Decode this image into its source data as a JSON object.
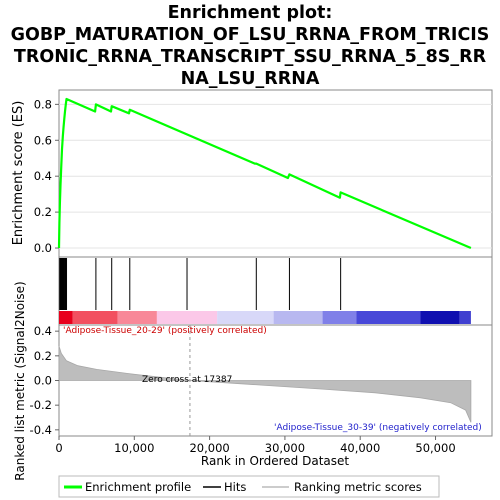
{
  "title_lines": [
    "Enrichment plot:",
    "GOBP_MATURATION_OF_LSU_RRNA_FROM_TRICIS",
    "TRONIC_RRNA_TRANSCRIPT_SSU_RRNA_5_8S_RR",
    "NA_LSU_RRNA"
  ],
  "chart_data": {
    "type": "line",
    "es_panel": {
      "ylabel": "Enrichment score (ES)",
      "ylim": [
        -0.05,
        0.88
      ],
      "yticks": [
        "0.0",
        "0.2",
        "0.4",
        "0.6",
        "0.8"
      ],
      "ytick_values": [
        0.0,
        0.2,
        0.4,
        0.6,
        0.8
      ],
      "series": [
        {
          "name": "Enrichment profile",
          "color": "#00ff00",
          "x": [
            0,
            50,
            120,
            200,
            300,
            400,
            500,
            600,
            700,
            800,
            900,
            1000,
            4800,
            4900,
            6900,
            7000,
            9300,
            9400,
            26000,
            26200,
            30400,
            30600,
            37300,
            37400,
            54700
          ],
          "y": [
            0.0,
            0.14,
            0.25,
            0.35,
            0.46,
            0.55,
            0.62,
            0.67,
            0.72,
            0.76,
            0.8,
            0.83,
            0.76,
            0.8,
            0.76,
            0.79,
            0.75,
            0.77,
            0.47,
            0.47,
            0.39,
            0.41,
            0.28,
            0.31,
            0.0
          ]
        }
      ]
    },
    "hits": [
      100,
      150,
      220,
      300,
      380,
      450,
      520,
      600,
      700,
      800,
      900,
      1000,
      4900,
      7000,
      9400,
      17000,
      26200,
      30600,
      37400
    ],
    "ranking_panel": {
      "ylabel": "Ranked list metric (Signal2Noise)",
      "ylim": [
        -0.45,
        0.45
      ],
      "yticks": [
        "0.4",
        "0.2",
        "0.0",
        "-0.2",
        "-0.4"
      ],
      "ytick_values": [
        0.4,
        0.2,
        0.0,
        -0.2,
        -0.4
      ],
      "profile_x": [
        0,
        300,
        1000,
        2500,
        5000,
        10000,
        17387,
        25000,
        35000,
        42000,
        48000,
        52000,
        54000,
        54700
      ],
      "profile_y": [
        0.28,
        0.22,
        0.16,
        0.12,
        0.09,
        0.05,
        0.0,
        -0.03,
        -0.07,
        -0.1,
        -0.14,
        -0.18,
        -0.24,
        -0.34
      ],
      "zero_cross_label": "Zero cross at 17387",
      "zero_cross_x": 17387,
      "positive_label": "'Adipose-Tissue_20-29' (positively correlated)",
      "negative_label": "'Adipose-Tissue_30-39' (negatively correlated)"
    },
    "color_bar": [
      {
        "to": 1800,
        "color": "#e8001c"
      },
      {
        "to": 7800,
        "color": "#f25060"
      },
      {
        "to": 13000,
        "color": "#f88898"
      },
      {
        "to": 21000,
        "color": "#fbc8e8"
      },
      {
        "to": 28500,
        "color": "#d8d8f8"
      },
      {
        "to": 35000,
        "color": "#b8b8f0"
      },
      {
        "to": 39500,
        "color": "#8080e8"
      },
      {
        "to": 48000,
        "color": "#4848d8"
      },
      {
        "to": 53200,
        "color": "#1010b0"
      },
      {
        "to": 54700,
        "color": "#4040d0"
      }
    ],
    "xlabel": "Rank in Ordered Dataset",
    "xlim": [
      0,
      57500
    ],
    "xticks": [
      "0",
      "10,000",
      "20,000",
      "30,000",
      "40,000",
      "50,000"
    ],
    "xtick_values": [
      0,
      10000,
      20000,
      30000,
      40000,
      50000
    ],
    "legend": {
      "placement": "bottom",
      "items": [
        "Enrichment profile",
        "Hits",
        "Ranking metric scores"
      ]
    }
  }
}
